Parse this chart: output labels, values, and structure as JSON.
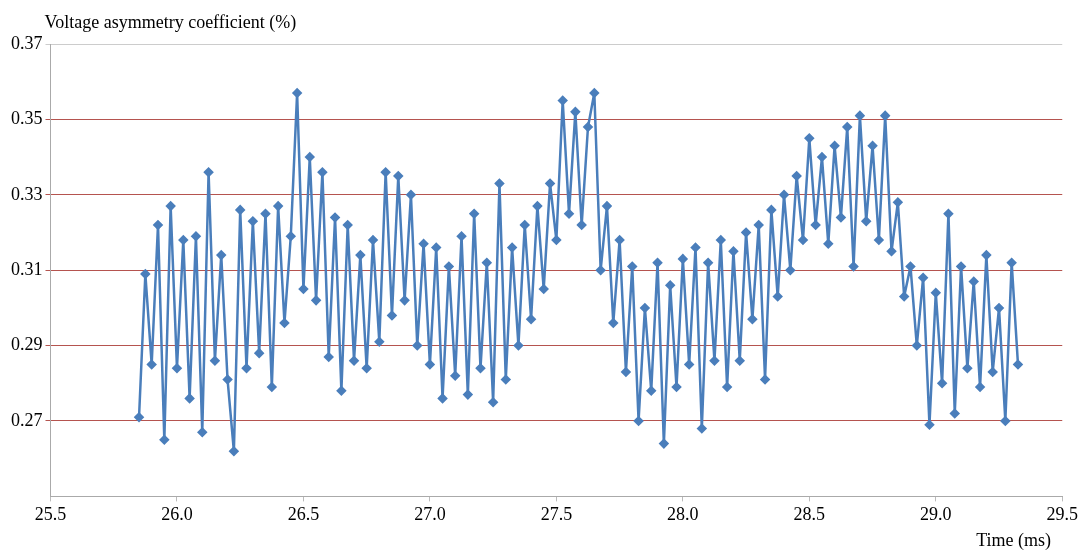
{
  "chart_data": {
    "type": "line",
    "ylabel": "Voltage asymmetry coefficient (%)",
    "xlabel": "Time (ms)",
    "xlim": [
      25.5,
      29.5
    ],
    "xticks": [
      {
        "value": 25.5,
        "label": "25.5"
      },
      {
        "value": 26,
        "label": "26.0"
      },
      {
        "value": 26.5,
        "label": "26.5"
      },
      {
        "value": 27,
        "label": "27.0"
      },
      {
        "value": 27.5,
        "label": "27.5"
      },
      {
        "value": 28,
        "label": "28.0"
      },
      {
        "value": 28.5,
        "label": "28.5"
      },
      {
        "value": 29,
        "label": "29.0"
      },
      {
        "value": 29.5,
        "label": "29.5"
      }
    ],
    "ylim": [
      0.25,
      0.37
    ],
    "yticks": [
      0.27,
      0.29,
      0.31,
      0.33,
      0.35,
      0.37
    ],
    "grid": "y",
    "legend": false,
    "marker": "diamond",
    "line_style": "solid",
    "series": [
      {
        "color": "#4a7ebb",
        "x": [
          25.85,
          25.875,
          25.9,
          25.925,
          25.95,
          25.975,
          26,
          26.025,
          26.05,
          26.075,
          26.1,
          26.125,
          26.15,
          26.175,
          26.2,
          26.225,
          26.25,
          26.275,
          26.3,
          26.325,
          26.35,
          26.375,
          26.4,
          26.425,
          26.45,
          26.475,
          26.5,
          26.525,
          26.55,
          26.575,
          26.6,
          26.625,
          26.65,
          26.675,
          26.7,
          26.725,
          26.75,
          26.775,
          26.8,
          26.825,
          26.85,
          26.875,
          26.9,
          26.925,
          26.95,
          26.975,
          27,
          27.025,
          27.05,
          27.075,
          27.1,
          27.125,
          27.15,
          27.175,
          27.2,
          27.225,
          27.25,
          27.275,
          27.3,
          27.325,
          27.35,
          27.375,
          27.4,
          27.425,
          27.45,
          27.475,
          27.5,
          27.525,
          27.55,
          27.575,
          27.6,
          27.625,
          27.65,
          27.675,
          27.7,
          27.725,
          27.75,
          27.775,
          27.8,
          27.825,
          27.85,
          27.875,
          27.9,
          27.925,
          27.95,
          27.975,
          28,
          28.025,
          28.05,
          28.075,
          28.1,
          28.125,
          28.15,
          28.175,
          28.2,
          28.225,
          28.25,
          28.275,
          28.3,
          28.325,
          28.35,
          28.375,
          28.4,
          28.425,
          28.45,
          28.475,
          28.5,
          28.525,
          28.55,
          28.575,
          28.6,
          28.625,
          28.65,
          28.675,
          28.7,
          28.725,
          28.75,
          28.775,
          28.8,
          28.825,
          28.85,
          28.875,
          28.9,
          28.925,
          28.95,
          28.975,
          29,
          29.025,
          29.05,
          29.075,
          29.1,
          29.125,
          29.15,
          29.175,
          29.2,
          29.225,
          29.25,
          29.275,
          29.3,
          29.325
        ],
        "values": [
          0.271,
          0.309,
          0.285,
          0.322,
          0.265,
          0.327,
          0.284,
          0.318,
          0.276,
          0.319,
          0.267,
          0.336,
          0.286,
          0.314,
          0.281,
          0.262,
          0.326,
          0.284,
          0.323,
          0.288,
          0.325,
          0.279,
          0.327,
          0.296,
          0.319,
          0.357,
          0.305,
          0.34,
          0.302,
          0.336,
          0.287,
          0.324,
          0.278,
          0.322,
          0.286,
          0.314,
          0.284,
          0.318,
          0.291,
          0.336,
          0.298,
          0.335,
          0.302,
          0.33,
          0.29,
          0.317,
          0.285,
          0.316,
          0.276,
          0.311,
          0.282,
          0.319,
          0.277,
          0.325,
          0.284,
          0.312,
          0.275,
          0.333,
          0.281,
          0.316,
          0.29,
          0.322,
          0.297,
          0.327,
          0.305,
          0.333,
          0.318,
          0.355,
          0.325,
          0.352,
          0.322,
          0.348,
          0.357,
          0.31,
          0.327,
          0.296,
          0.318,
          0.283,
          0.311,
          0.27,
          0.3,
          0.278,
          0.312,
          0.264,
          0.306,
          0.279,
          0.313,
          0.285,
          0.316,
          0.268,
          0.312,
          0.286,
          0.318,
          0.279,
          0.315,
          0.286,
          0.32,
          0.297,
          0.322,
          0.281,
          0.326,
          0.303,
          0.33,
          0.31,
          0.335,
          0.318,
          0.345,
          0.322,
          0.34,
          0.317,
          0.343,
          0.324,
          0.348,
          0.311,
          0.351,
          0.323,
          0.343,
          0.318,
          0.351,
          0.315,
          0.328,
          0.303,
          0.311,
          0.29,
          0.308,
          0.269,
          0.304,
          0.28,
          0.325,
          0.272,
          0.311,
          0.284,
          0.307,
          0.279,
          0.314,
          0.283,
          0.3,
          0.27,
          0.312,
          0.285
        ]
      }
    ]
  }
}
